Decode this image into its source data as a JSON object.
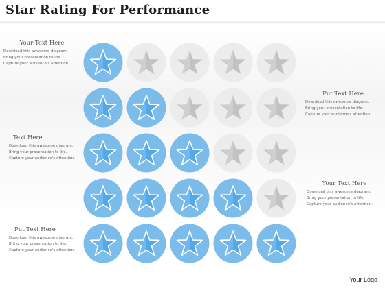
{
  "title": "Star Rating For Performance",
  "footer": {
    "logo": "Your Logo"
  },
  "colors": {
    "active_circle": "#7bbcea",
    "active_star": "#52a8e9",
    "inactive_circle": "#ececec",
    "inactive_star": "#c2c2c2"
  },
  "rows": [
    {
      "rating": 1,
      "total": 5
    },
    {
      "rating": 2,
      "total": 5
    },
    {
      "rating": 3,
      "total": 5
    },
    {
      "rating": 4,
      "total": 5
    },
    {
      "rating": 5,
      "total": 5
    }
  ],
  "text_blocks": [
    {
      "heading": "Your Text Here",
      "lines": [
        "Download this awesome diagram.",
        "Bring your presentation to life.",
        "Capture your audience's attention."
      ]
    },
    {
      "heading": "Put Text Here",
      "lines": [
        "Download this awesome diagram.",
        "Bring your presentation to life.",
        "Capture your audience's attention."
      ]
    },
    {
      "heading": "Text Here",
      "lines": [
        "Download this awesome diagram.",
        "Bring your presentation to life.",
        "Capture your audience's attention."
      ]
    },
    {
      "heading": "Your Text Here",
      "lines": [
        "Download this awesome diagram.",
        "Bring your presentation to life.",
        "Capture your audience's attention."
      ]
    },
    {
      "heading": "Put Text Here",
      "lines": [
        "Download this awesome diagram.",
        "Bring your presentation to life.",
        "Capture your audience's attention."
      ]
    }
  ]
}
